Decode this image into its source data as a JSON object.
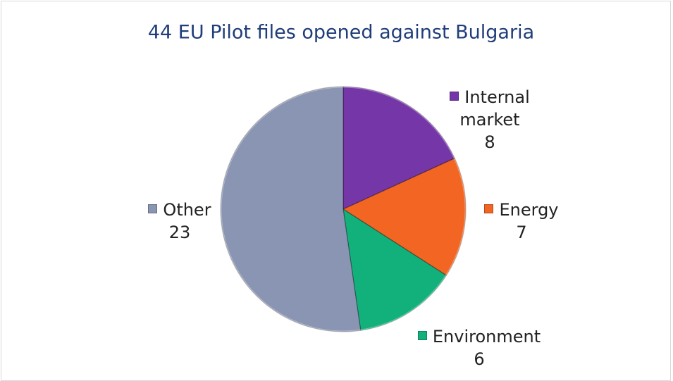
{
  "chart_data": {
    "type": "pie",
    "title": "44 EU Pilot files opened against Bulgaria",
    "categories": [
      "Internal market",
      "Energy",
      "Environment",
      "Other"
    ],
    "values": [
      8,
      7,
      6,
      23
    ],
    "colors": [
      "#7536a8",
      "#f26522",
      "#12b17c",
      "#8a95b3"
    ]
  }
}
